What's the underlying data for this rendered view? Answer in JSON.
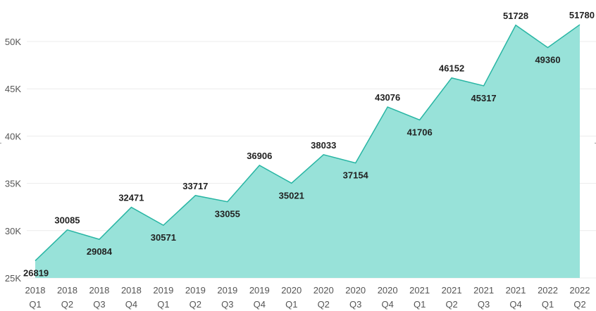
{
  "chart_data": {
    "type": "area",
    "title": "",
    "xlabel": "",
    "ylabel": "",
    "categories": [
      [
        "2018",
        "Q1"
      ],
      [
        "2018",
        "Q2"
      ],
      [
        "2018",
        "Q3"
      ],
      [
        "2018",
        "Q4"
      ],
      [
        "2019",
        "Q1"
      ],
      [
        "2019",
        "Q2"
      ],
      [
        "2019",
        "Q3"
      ],
      [
        "2019",
        "Q4"
      ],
      [
        "2020",
        "Q1"
      ],
      [
        "2020",
        "Q2"
      ],
      [
        "2020",
        "Q3"
      ],
      [
        "2020",
        "Q4"
      ],
      [
        "2021",
        "Q1"
      ],
      [
        "2021",
        "Q2"
      ],
      [
        "2021",
        "Q3"
      ],
      [
        "2021",
        "Q4"
      ],
      [
        "2022",
        "Q1"
      ],
      [
        "2022",
        "Q2"
      ]
    ],
    "values": [
      26819,
      30085,
      29084,
      32471,
      30571,
      33717,
      33055,
      36906,
      35021,
      38033,
      37154,
      43076,
      41706,
      46152,
      45317,
      51728,
      49360,
      51780
    ],
    "data_labels": [
      "26819",
      "30085",
      "29084",
      "32471",
      "30571",
      "33717",
      "33055",
      "36906",
      "35021",
      "38033",
      "37154",
      "43076",
      "41706",
      "46152",
      "45317",
      "51728",
      "49360",
      "51780"
    ],
    "y_ticks": [
      25000,
      30000,
      35000,
      40000,
      45000,
      50000
    ],
    "y_tick_labels": [
      "25K",
      "30K",
      "35K",
      "40K",
      "45K",
      "50K"
    ],
    "ylim": [
      25000,
      53000
    ],
    "grid": true,
    "legend": "none",
    "colors": {
      "fill": "#98e2d9",
      "line": "#27b5a3"
    }
  }
}
